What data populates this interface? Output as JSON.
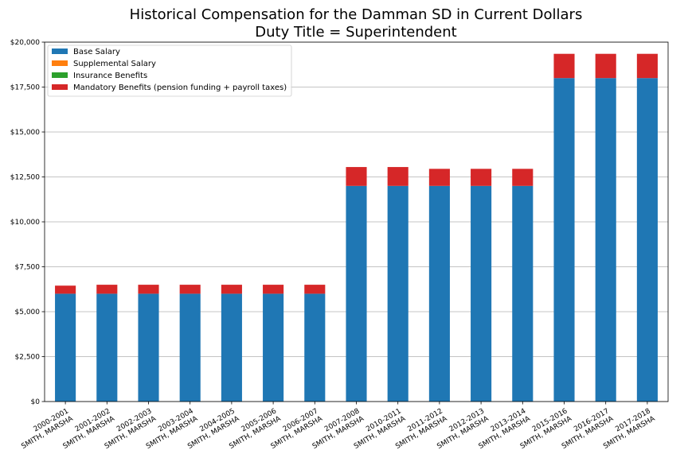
{
  "chart_data": {
    "type": "bar",
    "stacked": true,
    "title": "Historical Compensation for the Damman SD in Current Dollars",
    "subtitle": "Duty Title = Superintendent",
    "xlabel": "",
    "ylabel": "",
    "ylim": [
      0,
      20000
    ],
    "yticks": [
      "$0",
      "$2,500",
      "$5,000",
      "$7,500",
      "$10,000",
      "$12,500",
      "$15,000",
      "$17,500",
      "$20,000"
    ],
    "categories": [
      [
        "2000-2001",
        "SMITH, MARSHA"
      ],
      [
        "2001-2002",
        "SMITH, MARSHA"
      ],
      [
        "2002-2003",
        "SMITH, MARSHA"
      ],
      [
        "2003-2004",
        "SMITH, MARSHA"
      ],
      [
        "2004-2005",
        "SMITH, MARSHA"
      ],
      [
        "2005-2006",
        "SMITH, MARSHA"
      ],
      [
        "2006-2007",
        "SMITH, MARSHA"
      ],
      [
        "2007-2008",
        "SMITH, MARSHA"
      ],
      [
        "2010-2011",
        "SMITH, MARSHA"
      ],
      [
        "2011-2012",
        "SMITH, MARSHA"
      ],
      [
        "2012-2013",
        "SMITH, MARSHA"
      ],
      [
        "2013-2014",
        "SMITH, MARSHA"
      ],
      [
        "2015-2016",
        "SMITH, MARSHA"
      ],
      [
        "2016-2017",
        "SMITH, MARSHA"
      ],
      [
        "2017-2018",
        "SMITH, MARSHA"
      ]
    ],
    "series": [
      {
        "name": "Base Salary",
        "color": "#1f77b4",
        "values": [
          6000,
          6000,
          6000,
          6000,
          6000,
          6000,
          6000,
          12000,
          12000,
          12000,
          12000,
          12000,
          18000,
          18000,
          18000
        ]
      },
      {
        "name": "Supplemental Salary",
        "color": "#ff7f0e",
        "values": [
          0,
          0,
          0,
          0,
          0,
          0,
          0,
          0,
          0,
          0,
          0,
          0,
          0,
          0,
          0
        ]
      },
      {
        "name": "Insurance Benefits",
        "color": "#2ca02c",
        "values": [
          0,
          0,
          0,
          0,
          0,
          0,
          0,
          0,
          0,
          0,
          0,
          0,
          0,
          0,
          0
        ]
      },
      {
        "name": "Mandatory Benefits (pension funding + payroll taxes)",
        "color": "#d62728",
        "values": [
          450,
          500,
          500,
          500,
          500,
          500,
          500,
          1050,
          1050,
          950,
          950,
          950,
          1350,
          1350,
          1350
        ]
      }
    ],
    "grid": "y",
    "legend_position": "top-left"
  }
}
